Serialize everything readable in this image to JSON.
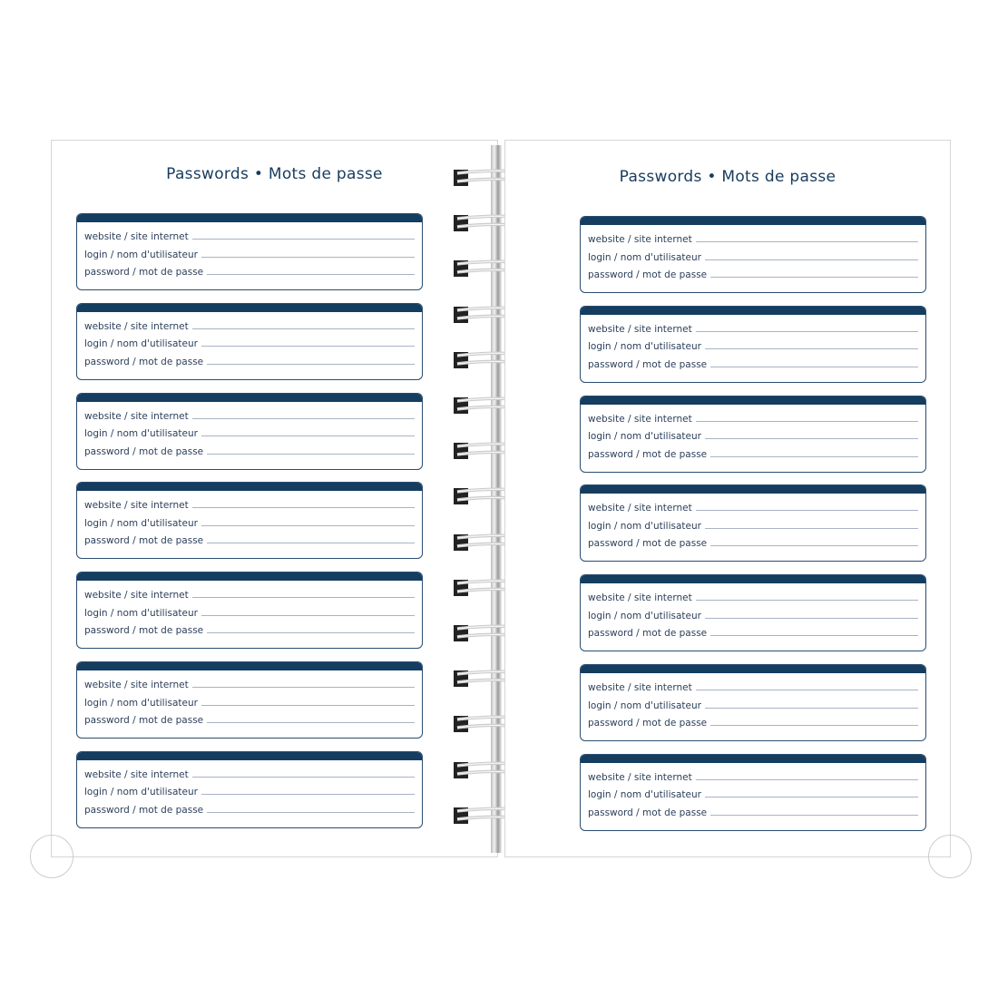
{
  "pages": [
    {
      "title": "Passwords • Mots de passe",
      "cards": 7
    },
    {
      "title": "Passwords • Mots de passe",
      "cards": 7
    }
  ],
  "fields": [
    "website / site internet",
    "login / nom d'utilisateur",
    "password / mot de passe"
  ],
  "colors": {
    "accent": "#143d5f",
    "text": "#2c3f5a",
    "rule": "#a9b3c4"
  }
}
